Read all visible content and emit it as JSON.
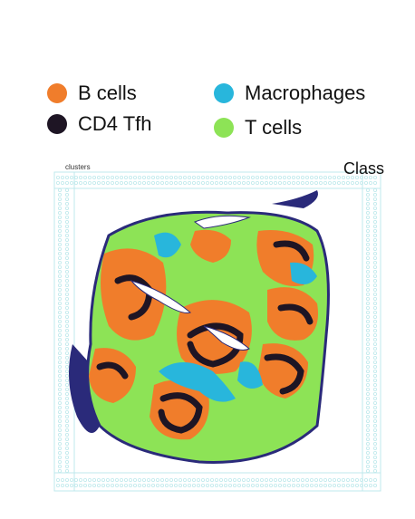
{
  "legend": {
    "items": [
      {
        "label": "B cells",
        "color": "#f07d2b"
      },
      {
        "label": "Macrophages",
        "color": "#28b6dc"
      },
      {
        "label": "CD4 Tfh",
        "color": "#1e1524"
      },
      {
        "label": "T cells",
        "color": "#8de356"
      }
    ]
  },
  "panel": {
    "title": "Class",
    "subtitle": "clusters"
  },
  "colors": {
    "b_cells": "#f07d2b",
    "macrophages": "#28b6dc",
    "cd4_tfh": "#1e1524",
    "t_cells": "#8de356",
    "tissue_edge": "#2a2a7a",
    "empty_spot": "#bfe9ec"
  }
}
